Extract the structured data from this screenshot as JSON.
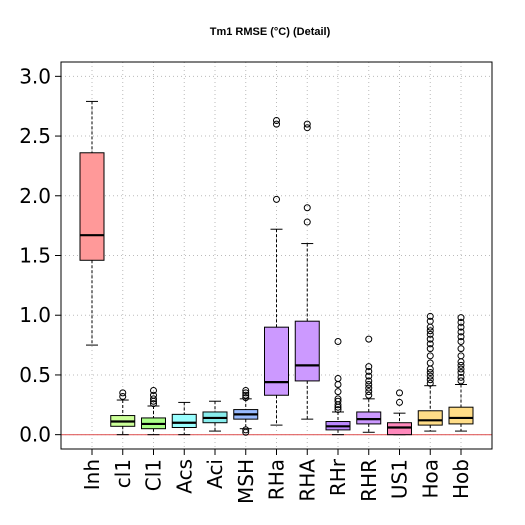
{
  "chart_data": {
    "type": "box",
    "title": "Tm1 RMSE (°C) (Detail)",
    "xlabel": "",
    "ylabel": "",
    "ylim": [
      -0.12,
      3.12
    ],
    "yticks": [
      0.0,
      0.5,
      1.0,
      1.5,
      2.0,
      2.5,
      3.0
    ],
    "ytick_labels": [
      "0.0",
      "0.5",
      "1.0",
      "1.5",
      "2.0",
      "2.5",
      "3.0"
    ],
    "grid": true,
    "reference_line": {
      "y": 0.0,
      "color": "#e06060"
    },
    "categories": [
      "Inh",
      "cl1",
      "Cl1",
      "Acs",
      "Aci",
      "MSH",
      "RHa",
      "RHA",
      "RHr",
      "RHR",
      "US1",
      "Hoa",
      "Hob"
    ],
    "boxes": [
      {
        "name": "Inh",
        "color": "#ff9999",
        "whisker_low": 0.75,
        "q1": 1.46,
        "median": 1.67,
        "q3": 2.36,
        "whisker_high": 2.79,
        "outliers": []
      },
      {
        "name": "cl1",
        "color": "#ccff99",
        "whisker_low": 0.0,
        "q1": 0.07,
        "median": 0.11,
        "q3": 0.16,
        "whisker_high": 0.29,
        "outliers": [
          0.32,
          0.35
        ]
      },
      {
        "name": "Cl1",
        "color": "#aaff88",
        "whisker_low": 0.0,
        "q1": 0.05,
        "median": 0.09,
        "q3": 0.14,
        "whisker_high": 0.24,
        "outliers": [
          0.26,
          0.28,
          0.3,
          0.33,
          0.37
        ]
      },
      {
        "name": "Acs",
        "color": "#99ffff",
        "whisker_low": 0.0,
        "q1": 0.06,
        "median": 0.1,
        "q3": 0.17,
        "whisker_high": 0.27,
        "outliers": []
      },
      {
        "name": "Aci",
        "color": "#88eeee",
        "whisker_low": 0.03,
        "q1": 0.1,
        "median": 0.14,
        "q3": 0.19,
        "whisker_high": 0.28,
        "outliers": []
      },
      {
        "name": "MSH",
        "color": "#99bbff",
        "whisker_low": 0.05,
        "q1": 0.13,
        "median": 0.17,
        "q3": 0.21,
        "whisker_high": 0.3,
        "outliers": [
          0.02,
          0.04,
          0.31,
          0.33,
          0.35,
          0.37
        ]
      },
      {
        "name": "RHa",
        "color": "#cc99ff",
        "whisker_low": 0.08,
        "q1": 0.33,
        "median": 0.44,
        "q3": 0.9,
        "whisker_high": 1.72,
        "outliers": [
          1.97,
          2.6,
          2.63
        ]
      },
      {
        "name": "RHA",
        "color": "#cc99ff",
        "whisker_low": 0.13,
        "q1": 0.45,
        "median": 0.58,
        "q3": 0.95,
        "whisker_high": 1.6,
        "outliers": [
          1.78,
          1.9,
          2.57,
          2.6
        ]
      },
      {
        "name": "RHr",
        "color": "#bb88ff",
        "whisker_low": 0.0,
        "q1": 0.04,
        "median": 0.07,
        "q3": 0.11,
        "whisker_high": 0.19,
        "outliers": [
          0.21,
          0.23,
          0.25,
          0.28,
          0.3,
          0.36,
          0.42,
          0.47,
          0.78
        ]
      },
      {
        "name": "RHR",
        "color": "#cc99ff",
        "whisker_low": 0.02,
        "q1": 0.09,
        "median": 0.13,
        "q3": 0.19,
        "whisker_high": 0.3,
        "outliers": [
          0.33,
          0.36,
          0.39,
          0.42,
          0.45,
          0.49,
          0.53,
          0.57,
          0.8
        ]
      },
      {
        "name": "US1",
        "color": "#ff88bb",
        "whisker_low": 0.0,
        "q1": 0.0,
        "median": 0.06,
        "q3": 0.1,
        "whisker_high": 0.18,
        "outliers": [
          0.27,
          0.35
        ]
      },
      {
        "name": "Hoa",
        "color": "#ffdd88",
        "whisker_low": 0.03,
        "q1": 0.08,
        "median": 0.12,
        "q3": 0.2,
        "whisker_high": 0.41,
        "outliers": [
          0.43,
          0.46,
          0.49,
          0.52,
          0.55,
          0.6,
          0.66,
          0.72,
          0.76,
          0.8,
          0.84,
          0.87,
          0.9,
          0.95,
          0.99
        ]
      },
      {
        "name": "Hob",
        "color": "#ffdd88",
        "whisker_low": 0.03,
        "q1": 0.09,
        "median": 0.14,
        "q3": 0.23,
        "whisker_high": 0.42,
        "outliers": [
          0.45,
          0.48,
          0.52,
          0.55,
          0.58,
          0.61,
          0.66,
          0.72,
          0.78,
          0.82,
          0.86,
          0.9,
          0.94,
          0.98
        ]
      }
    ]
  }
}
